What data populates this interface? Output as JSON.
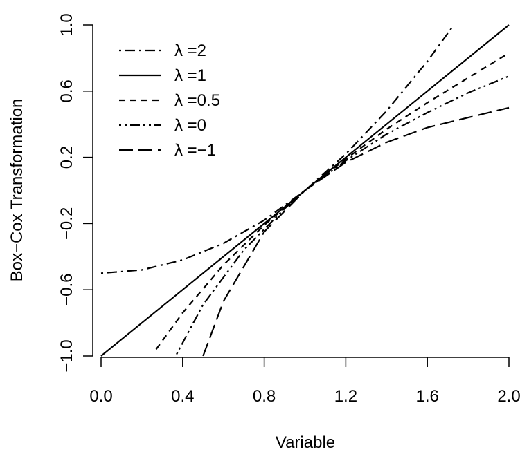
{
  "chart_data": {
    "type": "line",
    "xlabel": "Variable",
    "ylabel": "Box−Cox Transformation",
    "xlim": [
      0.0,
      2.0
    ],
    "ylim": [
      -1.0,
      1.0
    ],
    "x_ticks": [
      "0.0",
      "0.4",
      "0.8",
      "1.2",
      "1.6",
      "2.0"
    ],
    "y_ticks": [
      "−1.0",
      "−0.6",
      "−0.2",
      "0.2",
      "0.6",
      "1.0"
    ],
    "grid": false,
    "legend_position": "top-left",
    "series": [
      {
        "name": "λ =2",
        "lambda": 2,
        "line_style": "dot-dash",
        "x": [
          0.0,
          0.2,
          0.4,
          0.6,
          0.8,
          1.0,
          1.2,
          1.4,
          1.6,
          1.73
        ],
        "y": [
          -0.5,
          -0.48,
          -0.42,
          -0.32,
          -0.18,
          0.0,
          0.22,
          0.48,
          0.78,
          1.0
        ]
      },
      {
        "name": "λ =1",
        "lambda": 1,
        "line_style": "solid",
        "x": [
          0.0,
          0.4,
          0.8,
          1.2,
          1.6,
          2.0
        ],
        "y": [
          -1.0,
          -0.6,
          -0.2,
          0.2,
          0.6,
          1.0
        ]
      },
      {
        "name": "λ =0.5",
        "lambda": 0.5,
        "line_style": "short-dash",
        "x": [
          0.27,
          0.4,
          0.6,
          0.8,
          1.0,
          1.2,
          1.4,
          1.6,
          1.8,
          2.0
        ],
        "y": [
          -0.96,
          -0.74,
          -0.45,
          -0.21,
          0.0,
          0.19,
          0.37,
          0.53,
          0.68,
          0.83
        ]
      },
      {
        "name": "λ =0",
        "lambda": 0,
        "line_style": "dot-dot-dash",
        "x": [
          0.37,
          0.5,
          0.7,
          0.9,
          1.0,
          1.2,
          1.4,
          1.6,
          1.8,
          2.0
        ],
        "y": [
          -0.99,
          -0.69,
          -0.36,
          -0.11,
          0.0,
          0.18,
          0.34,
          0.47,
          0.59,
          0.69
        ]
      },
      {
        "name": "λ =−1",
        "lambda": -1,
        "line_style": "long-dash",
        "x": [
          0.5,
          0.6,
          0.8,
          1.0,
          1.2,
          1.4,
          1.6,
          1.8,
          2.0
        ],
        "y": [
          -1.0,
          -0.67,
          -0.25,
          0.0,
          0.17,
          0.29,
          0.38,
          0.44,
          0.5
        ]
      }
    ]
  }
}
